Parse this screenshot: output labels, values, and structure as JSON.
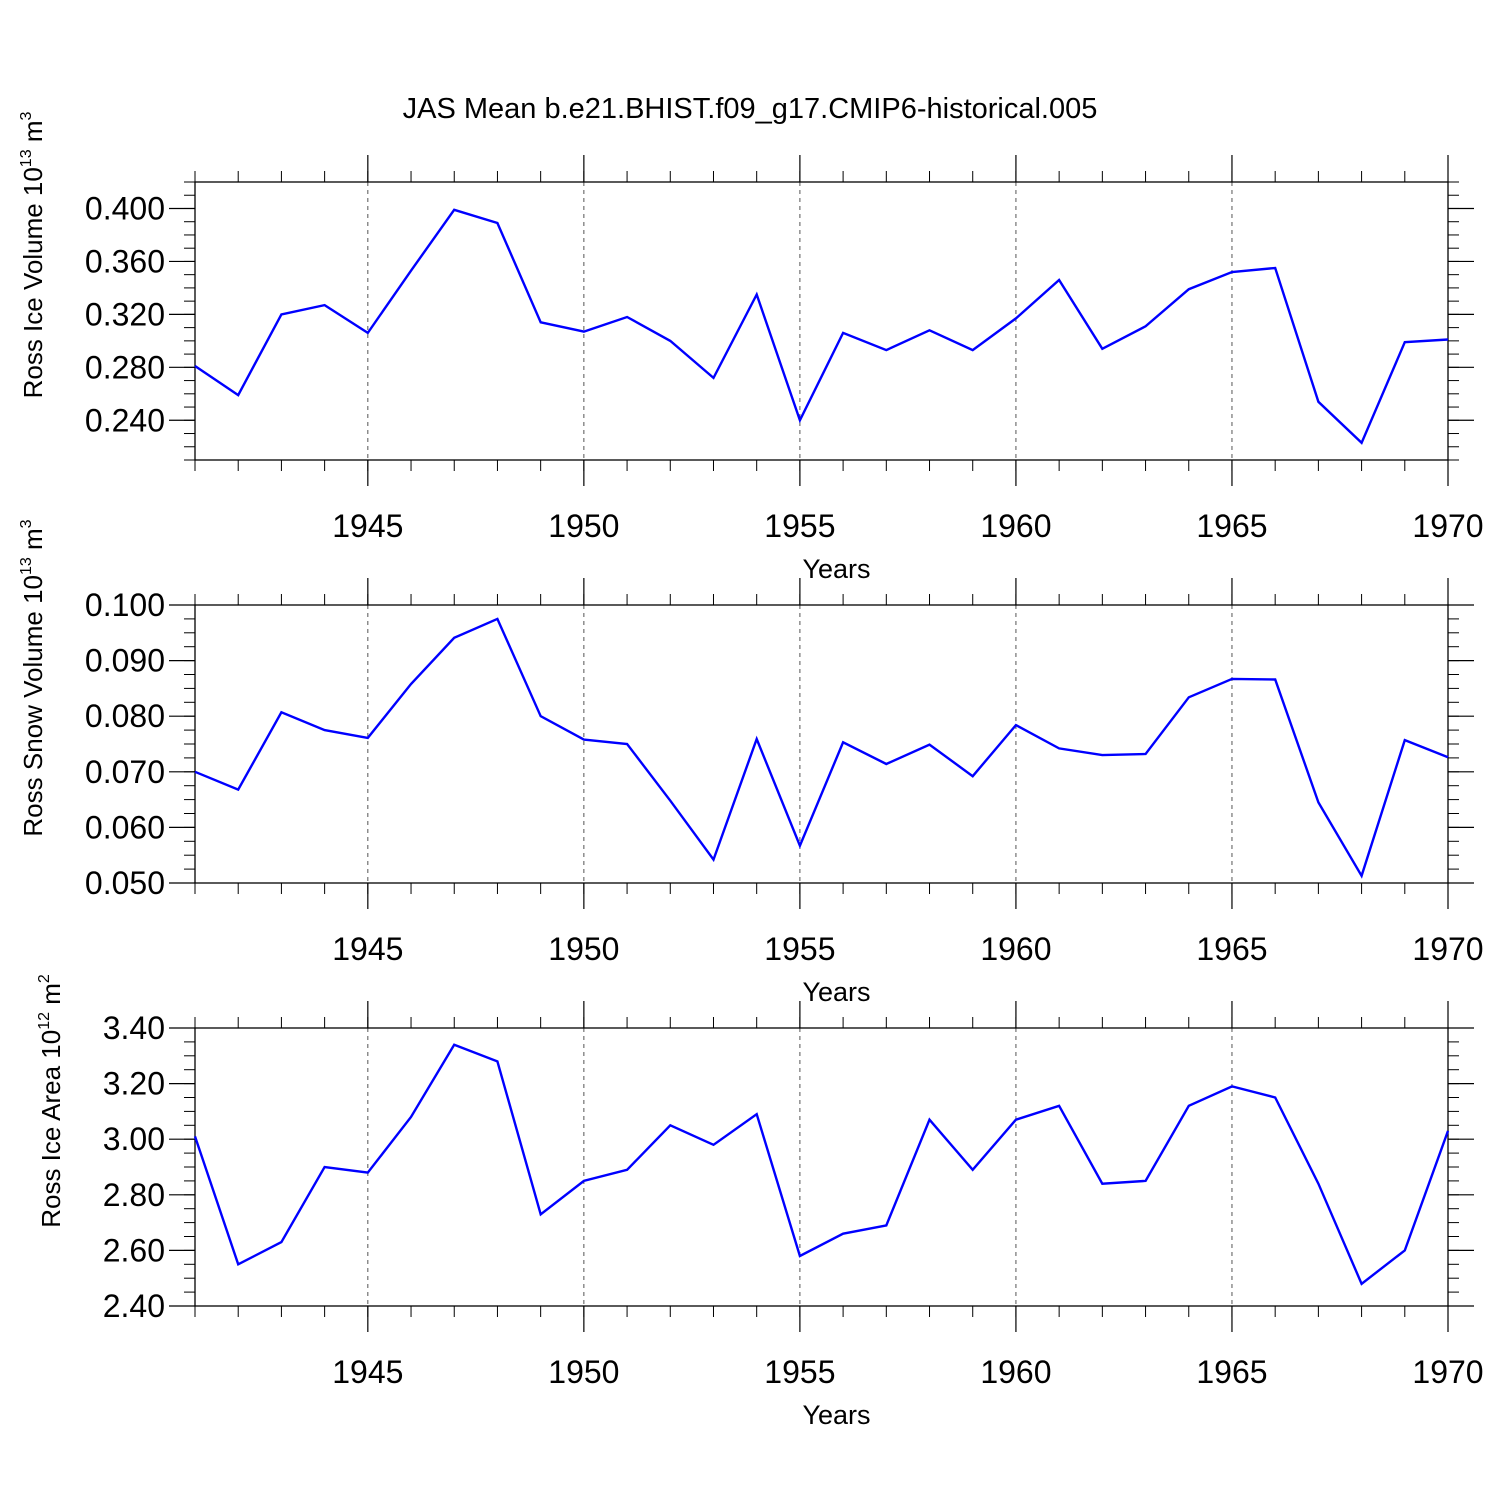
{
  "title": "JAS Mean b.e21.BHIST.f09_g17.CMIP6-historical.005",
  "line_color": "#0000ff",
  "chart_data": [
    {
      "type": "line",
      "x": [
        1941,
        1942,
        1943,
        1944,
        1945,
        1946,
        1947,
        1948,
        1949,
        1950,
        1951,
        1952,
        1953,
        1954,
        1955,
        1956,
        1957,
        1958,
        1959,
        1960,
        1961,
        1962,
        1963,
        1964,
        1965,
        1966,
        1967,
        1968,
        1969,
        1970
      ],
      "values": [
        0.281,
        0.259,
        0.32,
        0.327,
        0.306,
        0.353,
        0.399,
        0.389,
        0.314,
        0.307,
        0.318,
        0.3,
        0.272,
        0.335,
        0.24,
        0.306,
        0.293,
        0.308,
        0.293,
        0.317,
        0.346,
        0.294,
        0.311,
        0.339,
        0.352,
        0.355,
        0.254,
        0.223,
        0.299,
        0.301
      ],
      "xlim": [
        1941,
        1970
      ],
      "ylim": [
        0.21,
        0.42
      ],
      "xticks": [
        1945,
        1950,
        1955,
        1960,
        1965,
        1970
      ],
      "yticks": [
        0.24,
        0.28,
        0.32,
        0.36,
        0.4
      ],
      "ytick_labels": [
        "0.240",
        "0.280",
        "0.320",
        "0.360",
        "0.400"
      ],
      "xlabel": "Years",
      "ylabel": {
        "prefix": "Ross Ice Volume 10",
        "exp": "13",
        "unit": " m",
        "unit_exp": "3"
      },
      "grid": "vertical dashed at x ticks"
    },
    {
      "type": "line",
      "x": [
        1941,
        1942,
        1943,
        1944,
        1945,
        1946,
        1947,
        1948,
        1949,
        1950,
        1951,
        1952,
        1953,
        1954,
        1955,
        1956,
        1957,
        1958,
        1959,
        1960,
        1961,
        1962,
        1963,
        1964,
        1965,
        1966,
        1967,
        1968,
        1969,
        1970
      ],
      "values": [
        0.07,
        0.0668,
        0.0807,
        0.0775,
        0.0761,
        0.0858,
        0.0941,
        0.0975,
        0.08,
        0.0758,
        0.075,
        0.0648,
        0.0542,
        0.0759,
        0.0567,
        0.0753,
        0.0714,
        0.0749,
        0.0692,
        0.0784,
        0.0742,
        0.073,
        0.0732,
        0.0834,
        0.0867,
        0.0866,
        0.0645,
        0.0513,
        0.0757,
        0.0726
      ],
      "xlim": [
        1941,
        1970
      ],
      "ylim": [
        0.05,
        0.1
      ],
      "xticks": [
        1945,
        1950,
        1955,
        1960,
        1965,
        1970
      ],
      "yticks": [
        0.05,
        0.06,
        0.07,
        0.08,
        0.09,
        0.1
      ],
      "ytick_labels": [
        "0.050",
        "0.060",
        "0.070",
        "0.080",
        "0.090",
        "0.100"
      ],
      "xlabel": "Years",
      "ylabel": {
        "prefix": "Ross Snow Volume 10",
        "exp": "13",
        "unit": " m",
        "unit_exp": "3"
      },
      "grid": "vertical dashed at x ticks"
    },
    {
      "type": "line",
      "x": [
        1941,
        1942,
        1943,
        1944,
        1945,
        1946,
        1947,
        1948,
        1949,
        1950,
        1951,
        1952,
        1953,
        1954,
        1955,
        1956,
        1957,
        1958,
        1959,
        1960,
        1961,
        1962,
        1963,
        1964,
        1965,
        1966,
        1967,
        1968,
        1969,
        1970
      ],
      "values": [
        3.01,
        2.55,
        2.63,
        2.9,
        2.88,
        3.08,
        3.34,
        3.28,
        2.73,
        2.85,
        2.89,
        3.05,
        2.98,
        3.09,
        2.58,
        2.66,
        2.69,
        3.07,
        2.89,
        3.07,
        3.12,
        2.84,
        2.85,
        3.12,
        3.19,
        3.15,
        2.84,
        2.48,
        2.6,
        3.03
      ],
      "xlim": [
        1941,
        1970
      ],
      "ylim": [
        2.4,
        3.4
      ],
      "xticks": [
        1945,
        1950,
        1955,
        1960,
        1965,
        1970
      ],
      "yticks": [
        2.4,
        2.6,
        2.8,
        3.0,
        3.2,
        3.4
      ],
      "ytick_labels": [
        "2.40",
        "2.60",
        "2.80",
        "3.00",
        "3.20",
        "3.40"
      ],
      "xlabel": "Years",
      "ylabel": {
        "prefix": "Ross Ice Area 10",
        "exp": "12",
        "unit": " m",
        "unit_exp": "2"
      },
      "grid": "vertical dashed at x ticks"
    }
  ]
}
